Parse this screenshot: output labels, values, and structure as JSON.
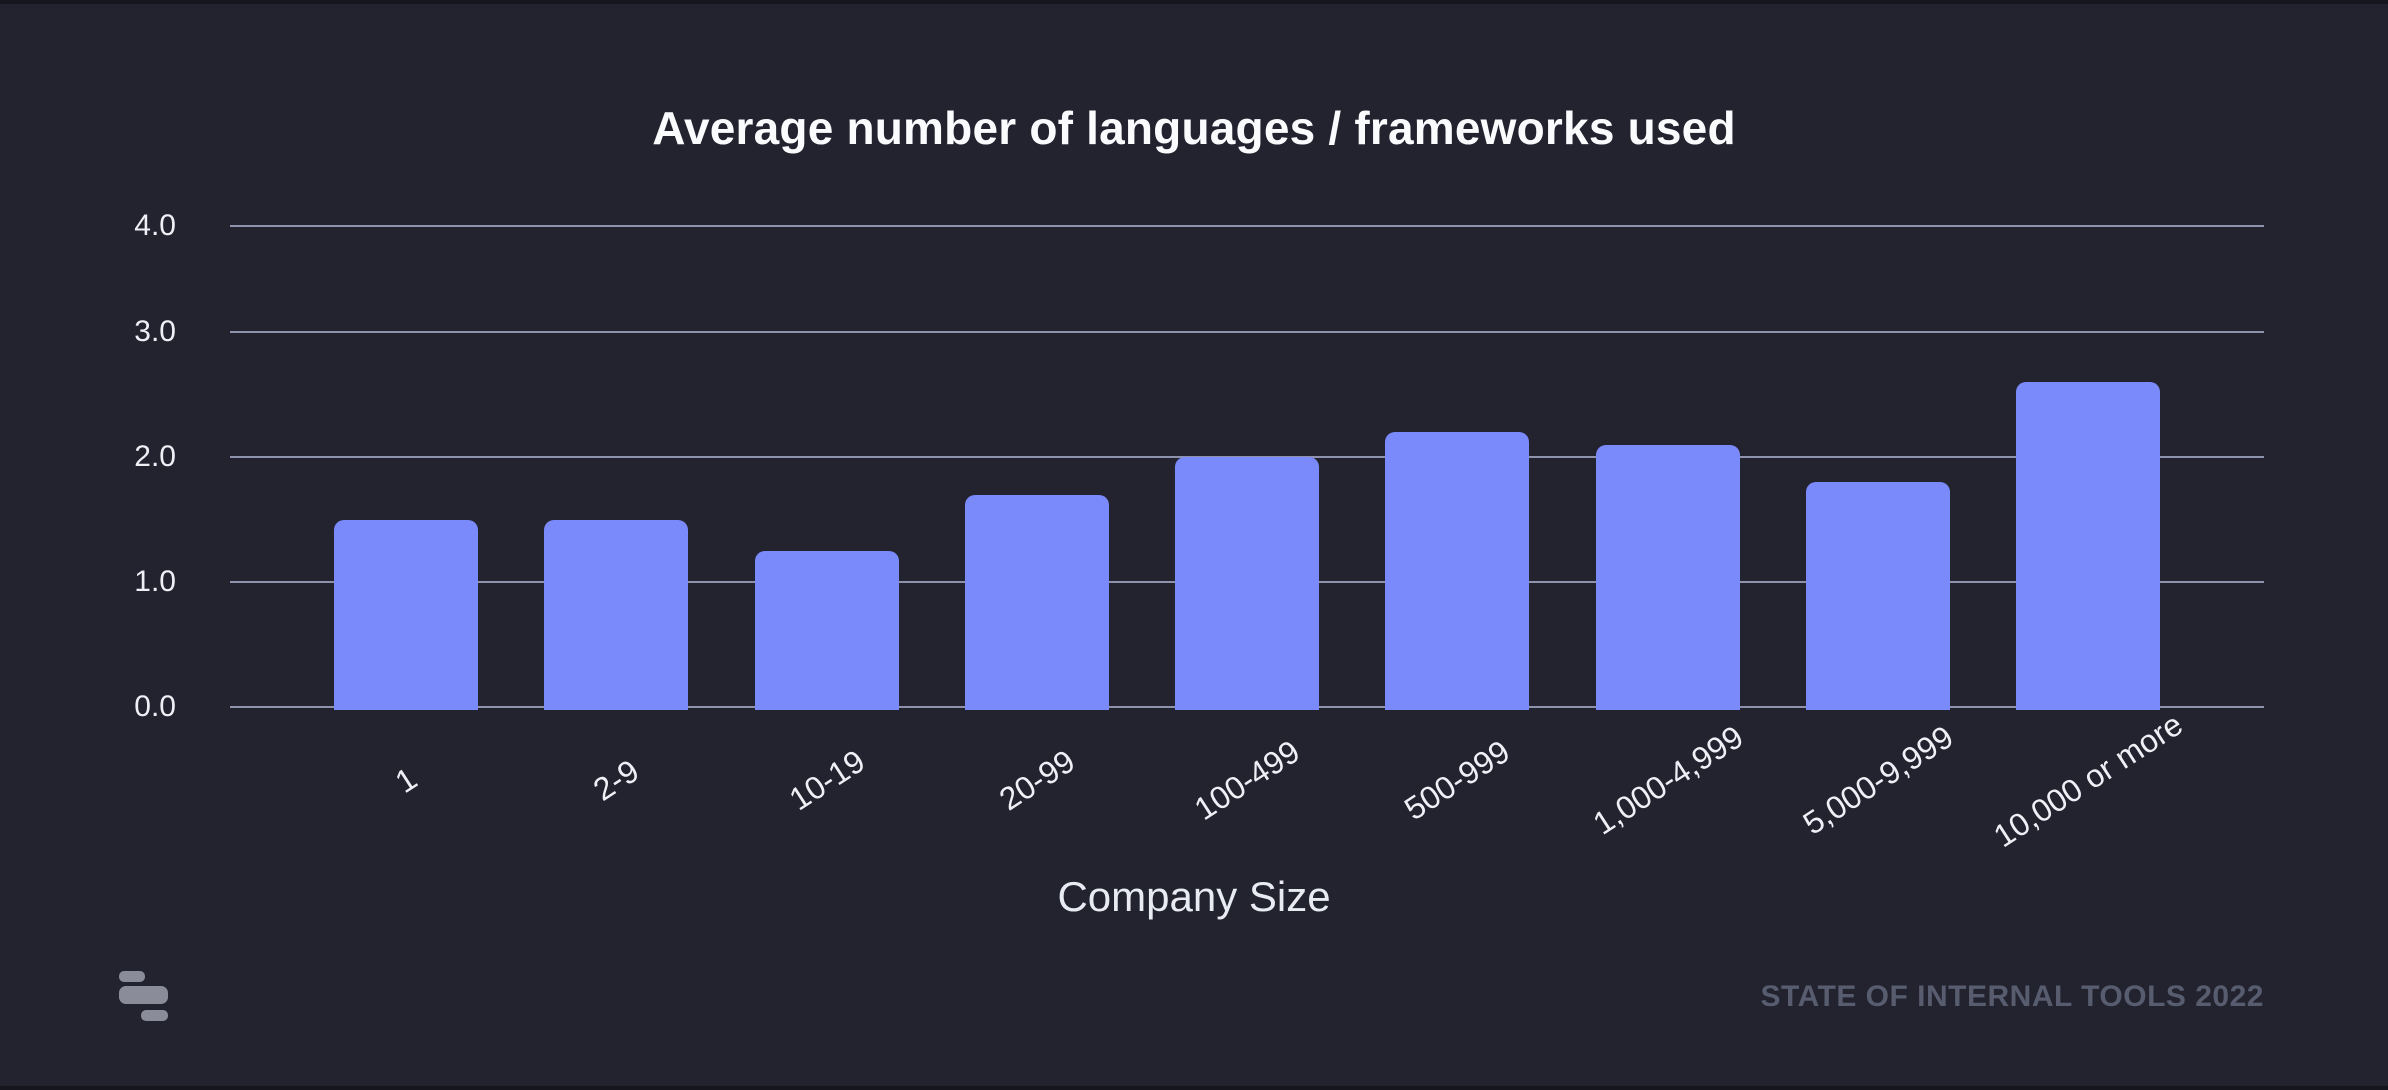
{
  "page": {
    "background_color": "#232330",
    "footer_credit": "STATE OF INTERNAL TOOLS 2022",
    "logo_name": "retool-mark"
  },
  "chart_data": {
    "type": "bar",
    "title": "Average number of languages / frameworks used",
    "xlabel": "Company Size",
    "ylabel": "",
    "categories": [
      "1",
      "2-9",
      "10-19",
      "20-99",
      "100-499",
      "500-999",
      "1,000-4,999",
      "5,000-9,999",
      "10,000 or more"
    ],
    "values": [
      1.5,
      1.5,
      1.25,
      1.7,
      2.0,
      2.2,
      2.1,
      1.8,
      2.6
    ],
    "ytick_labels": [
      "0.0",
      "1.0",
      "2.0",
      "3.0",
      "4.0"
    ],
    "ytick_values": [
      0,
      1,
      2,
      3,
      4
    ],
    "ylim": [
      0,
      4
    ],
    "grid": true,
    "legend": "none",
    "bar_color": "#7b8afa",
    "gridline_color": "#8e92ad",
    "title_color": "#fafbfd",
    "tick_label_color": "#eef0f6",
    "x_label_rotation_deg": -33
  }
}
